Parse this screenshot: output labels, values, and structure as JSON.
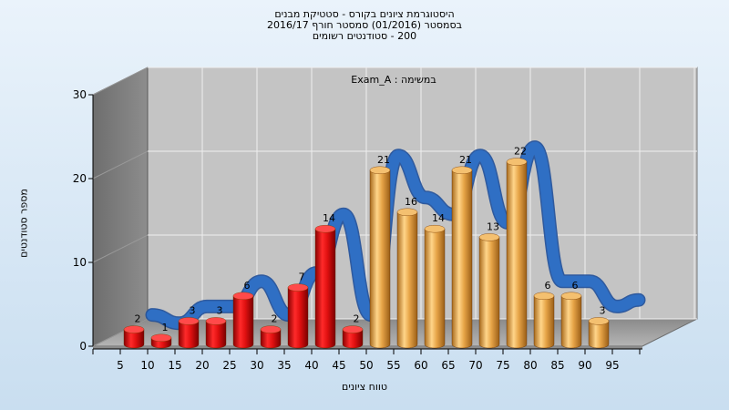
{
  "chart_data": {
    "type": "bar",
    "title_lines": [
      "היסטוגרמת ציונים בקורס - סטטיקת מבנים",
      "בסמסטר  (01/2016)  סמסטר חורף 2016/17",
      "200 - סטודנטים רשומים"
    ],
    "legend": "Exam_A : במשימה",
    "xlabel": "טווח ציונים",
    "ylabel": "מספר סטודנטים",
    "ylim": [
      0,
      30
    ],
    "yticks": [
      0,
      10,
      20,
      30
    ],
    "xticks": [
      5,
      10,
      15,
      20,
      25,
      30,
      35,
      40,
      45,
      50,
      55,
      60,
      65,
      70,
      75,
      80,
      85,
      90,
      95
    ],
    "bins": [
      {
        "value": 2,
        "color": "red"
      },
      {
        "value": 1,
        "color": "red"
      },
      {
        "value": 3,
        "color": "red"
      },
      {
        "value": 3,
        "color": "red"
      },
      {
        "value": 6,
        "color": "red"
      },
      {
        "value": 2,
        "color": "red"
      },
      {
        "value": 7,
        "color": "red"
      },
      {
        "value": 14,
        "color": "red"
      },
      {
        "value": 2,
        "color": "red"
      },
      {
        "value": 21,
        "color": "orange"
      },
      {
        "value": 16,
        "color": "orange"
      },
      {
        "value": 14,
        "color": "orange"
      },
      {
        "value": 21,
        "color": "orange"
      },
      {
        "value": 13,
        "color": "orange"
      },
      {
        "value": 22,
        "color": "orange"
      },
      {
        "value": 6,
        "color": "orange"
      },
      {
        "value": 6,
        "color": "orange"
      },
      {
        "value": 3,
        "color": "orange"
      }
    ],
    "curve_color": "#2f6fc4",
    "bar_colors": {
      "red": "#e11b1b",
      "orange": "#e3a448"
    },
    "grid": true
  }
}
